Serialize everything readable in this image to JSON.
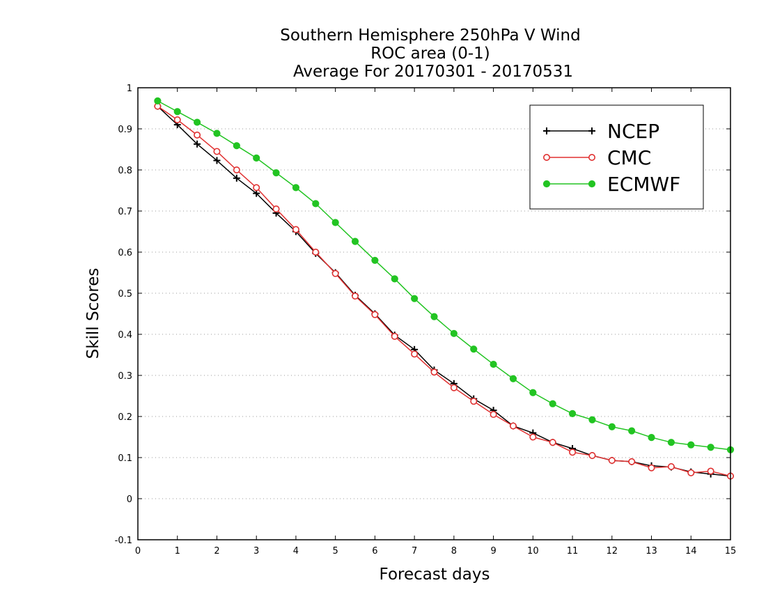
{
  "chart_data": {
    "type": "line",
    "title_lines": [
      "Southern Hemisphere 250hPa V Wind",
      "ROC area (0-1)",
      "Average For 20170301 - 20170531"
    ],
    "xlabel": "Forecast days",
    "ylabel": "Skill Scores",
    "xlim": [
      0,
      15
    ],
    "ylim": [
      -0.1,
      1
    ],
    "x_ticks": [
      "0",
      "1",
      "2",
      "3",
      "4",
      "5",
      "6",
      "7",
      "8",
      "9",
      "10",
      "11",
      "12",
      "13",
      "14",
      "15"
    ],
    "y_ticks": [
      "-0.1",
      "0",
      "0.1",
      "0.2",
      "0.3",
      "0.4",
      "0.5",
      "0.6",
      "0.7",
      "0.8",
      "0.9",
      "1"
    ],
    "y_tick_values": [
      -0.1,
      0,
      0.1,
      0.2,
      0.3,
      0.4,
      0.5,
      0.6,
      0.7,
      0.8,
      0.9,
      1.0
    ],
    "grid": "horizontal dotted",
    "legend_position": "top-right",
    "x": [
      0.5,
      1.0,
      1.5,
      2.0,
      2.5,
      3.0,
      3.5,
      4.0,
      4.5,
      5.0,
      5.5,
      6.0,
      6.5,
      7.0,
      7.5,
      8.0,
      8.5,
      9.0,
      9.5,
      10.0,
      10.5,
      11.0,
      11.5,
      12.0,
      12.5,
      13.0,
      13.5,
      14.0,
      14.5,
      15.0
    ],
    "series": [
      {
        "name": "NCEP",
        "color": "#000000",
        "marker": "plus",
        "values": [
          0.955,
          0.91,
          0.863,
          0.823,
          0.78,
          0.743,
          0.695,
          0.65,
          0.597,
          0.55,
          0.495,
          0.45,
          0.398,
          0.363,
          0.313,
          0.28,
          0.243,
          0.215,
          0.177,
          0.16,
          0.137,
          0.122,
          0.105,
          0.093,
          0.09,
          0.08,
          0.077,
          0.065,
          0.06,
          0.055
        ]
      },
      {
        "name": "CMC",
        "color": "#e03030",
        "marker": "open-circle",
        "values": [
          0.955,
          0.922,
          0.885,
          0.845,
          0.8,
          0.757,
          0.705,
          0.655,
          0.6,
          0.548,
          0.493,
          0.448,
          0.395,
          0.352,
          0.308,
          0.27,
          0.237,
          0.205,
          0.177,
          0.15,
          0.137,
          0.113,
          0.105,
          0.093,
          0.09,
          0.075,
          0.078,
          0.063,
          0.067,
          0.055
        ]
      },
      {
        "name": "ECMWF",
        "color": "#22c422",
        "marker": "filled-circle",
        "values": [
          0.968,
          0.942,
          0.916,
          0.889,
          0.859,
          0.829,
          0.793,
          0.757,
          0.718,
          0.672,
          0.626,
          0.58,
          0.535,
          0.487,
          0.443,
          0.402,
          0.364,
          0.327,
          0.292,
          0.258,
          0.231,
          0.207,
          0.192,
          0.175,
          0.165,
          0.149,
          0.137,
          0.131,
          0.125,
          0.119
        ]
      }
    ]
  }
}
